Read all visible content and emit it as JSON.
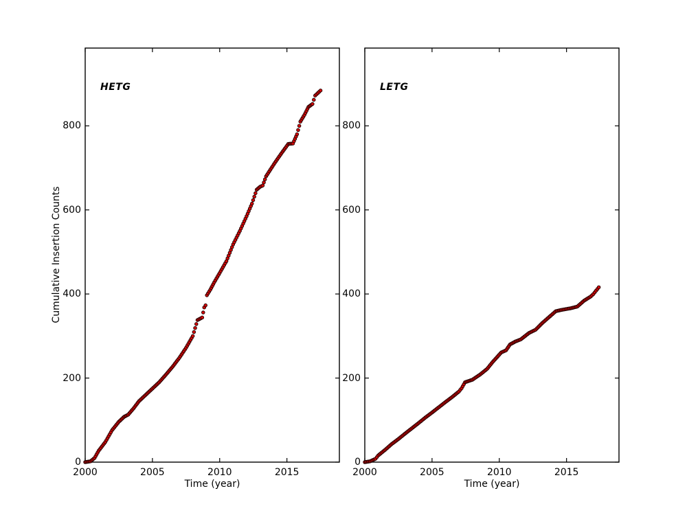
{
  "figure": {
    "background": "#ffffff",
    "text_color": "#000000"
  },
  "chart_data": [
    {
      "type": "scatter",
      "title": "HETG",
      "xlabel": "Time (year)",
      "ylabel": "Cumulative Insertion Counts",
      "xlim": [
        2000,
        2018.9
      ],
      "ylim": [
        0,
        985
      ],
      "xticks": [
        "2000",
        "2005",
        "2010",
        "2015"
      ],
      "xtick_values": [
        2000,
        2005,
        2010,
        2015
      ],
      "yticks": [
        "0",
        "200",
        "400",
        "600",
        "800"
      ],
      "ytick_values": [
        0,
        200,
        400,
        600,
        800
      ],
      "grid": false,
      "legend": null,
      "marker": {
        "shape": "circle",
        "fill": "#d40808",
        "edge": "#1a0000"
      },
      "points": [
        [
          2000.0,
          0
        ],
        [
          2000.4,
          2
        ],
        [
          2000.7,
          10
        ],
        [
          2001.0,
          27
        ],
        [
          2001.5,
          48
        ],
        [
          2002.0,
          76
        ],
        [
          2002.5,
          96
        ],
        [
          2002.9,
          108
        ],
        [
          2003.2,
          113
        ],
        [
          2003.6,
          128
        ],
        [
          2004.0,
          145
        ],
        [
          2004.5,
          160
        ],
        [
          2005.0,
          175
        ],
        [
          2005.5,
          190
        ],
        [
          2006.0,
          208
        ],
        [
          2006.5,
          227
        ],
        [
          2007.0,
          248
        ],
        [
          2007.5,
          272
        ],
        [
          2008.0,
          300
        ],
        [
          2008.35,
          338
        ],
        [
          2008.7,
          344
        ],
        [
          2008.85,
          368
        ],
        [
          2008.95,
          373
        ],
        [
          2009.05,
          397
        ],
        [
          2009.3,
          410
        ],
        [
          2009.6,
          428
        ],
        [
          2010.0,
          450
        ],
        [
          2010.5,
          478
        ],
        [
          2011.0,
          518
        ],
        [
          2011.5,
          550
        ],
        [
          2012.0,
          585
        ],
        [
          2012.4,
          615
        ],
        [
          2012.75,
          648
        ],
        [
          2013.0,
          655
        ],
        [
          2013.2,
          658
        ],
        [
          2013.45,
          680
        ],
        [
          2014.1,
          712
        ],
        [
          2014.6,
          735
        ],
        [
          2015.1,
          757
        ],
        [
          2015.45,
          758
        ],
        [
          2015.75,
          780
        ],
        [
          2016.0,
          810
        ],
        [
          2016.3,
          826
        ],
        [
          2016.6,
          845
        ],
        [
          2016.9,
          852
        ],
        [
          2017.1,
          872
        ],
        [
          2017.3,
          878
        ],
        [
          2017.5,
          884
        ]
      ]
    },
    {
      "type": "scatter",
      "title": "LETG",
      "xlabel": "Time (year)",
      "ylabel": "",
      "xlim": [
        2000,
        2018.9
      ],
      "ylim": [
        0,
        985
      ],
      "xticks": [
        "2000",
        "2005",
        "2010",
        "2015"
      ],
      "xtick_values": [
        2000,
        2005,
        2010,
        2015
      ],
      "yticks": [
        "0",
        "200",
        "400",
        "600",
        "800"
      ],
      "ytick_values": [
        0,
        200,
        400,
        600,
        800
      ],
      "grid": false,
      "legend": null,
      "marker": {
        "shape": "circle",
        "fill": "#d40808",
        "edge": "#1a0000"
      },
      "points": [
        [
          2000.0,
          0
        ],
        [
          2000.4,
          2
        ],
        [
          2000.8,
          8
        ],
        [
          2001.0,
          16
        ],
        [
          2001.5,
          29
        ],
        [
          2002.0,
          43
        ],
        [
          2002.5,
          55
        ],
        [
          2003.0,
          68
        ],
        [
          2003.4,
          78
        ],
        [
          2004.0,
          93
        ],
        [
          2004.5,
          106
        ],
        [
          2005.0,
          118
        ],
        [
          2005.4,
          128
        ],
        [
          2006.0,
          143
        ],
        [
          2006.5,
          155
        ],
        [
          2007.0,
          168
        ],
        [
          2007.2,
          176
        ],
        [
          2007.45,
          190
        ],
        [
          2008.0,
          196
        ],
        [
          2008.6,
          209
        ],
        [
          2009.1,
          222
        ],
        [
          2009.5,
          238
        ],
        [
          2010.15,
          261
        ],
        [
          2010.5,
          266
        ],
        [
          2010.8,
          280
        ],
        [
          2011.2,
          287
        ],
        [
          2011.6,
          292
        ],
        [
          2012.2,
          307
        ],
        [
          2012.7,
          315
        ],
        [
          2013.2,
          331
        ],
        [
          2013.7,
          345
        ],
        [
          2014.2,
          359
        ],
        [
          2014.6,
          362
        ],
        [
          2015.3,
          366
        ],
        [
          2015.8,
          370
        ],
        [
          2016.3,
          384
        ],
        [
          2016.8,
          394
        ],
        [
          2017.0,
          400
        ],
        [
          2017.2,
          408
        ],
        [
          2017.4,
          416
        ]
      ]
    }
  ]
}
